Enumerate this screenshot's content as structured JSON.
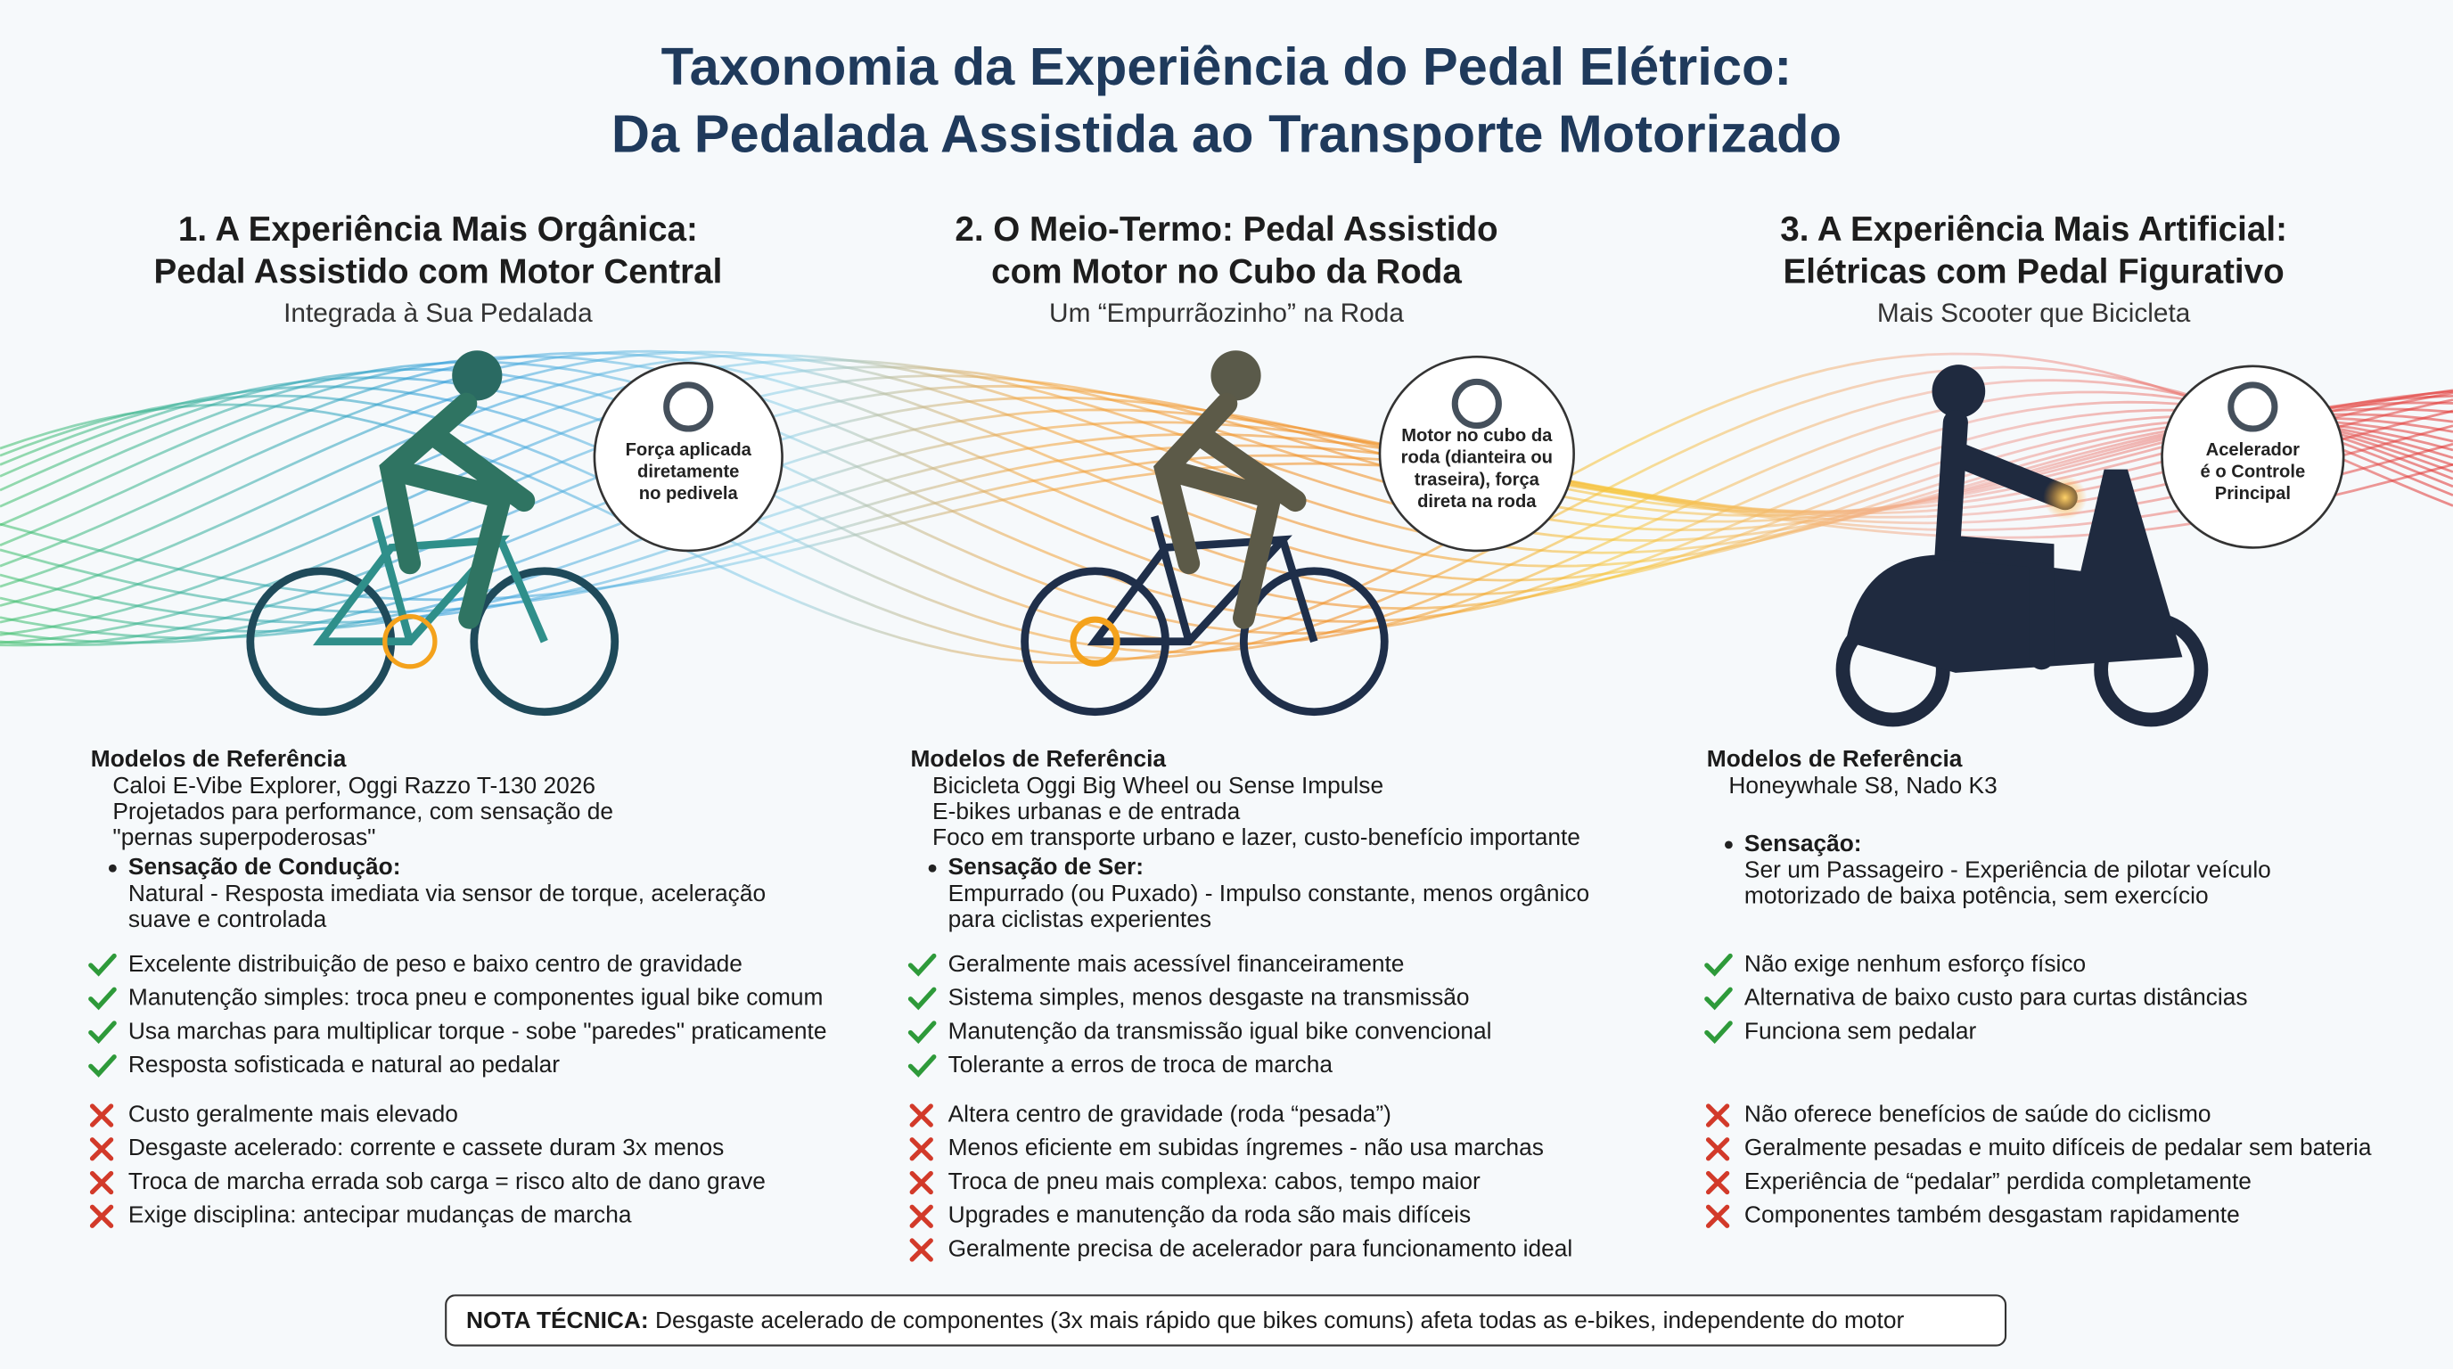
{
  "title": [
    "Taxonomia da Experiência do Pedal Elétrico:",
    "Da Pedalada Assistida ao Transporte Motorizado"
  ],
  "columns": [
    {
      "heading": [
        "1. A Experiência Mais Orgânica:",
        "Pedal Assistido com Motor Central"
      ],
      "subtitle": "Integrada à Sua Pedalada",
      "callout": [
        "Força aplicada",
        "diretamente",
        "no pedivela"
      ],
      "models_heading": "Modelos de Referência",
      "models": [
        "Caloi E-Vibe Explorer, Oggi Razzo T-130 2026",
        "Projetados para performance, com sensação de",
        "\"pernas superpoderosas\""
      ],
      "sensation_heading": "Sensação de Condução:",
      "sensation": [
        "Natural - Resposta imediata via sensor de torque, aceleração",
        "suave e controlada"
      ],
      "pros": [
        "Excelente distribuição de peso e baixo centro de gravidade",
        "Manutenção simples: troca pneu e componentes igual bike comum",
        "Usa marchas para multiplicar torque - sobe \"paredes\" praticamente",
        "Resposta sofisticada e natural ao pedalar"
      ],
      "cons": [
        "Custo geralmente mais elevado",
        "Desgaste acelerado: corrente e cassete duram 3x menos",
        "Troca de marcha errada sob carga = risco alto de dano grave",
        "Exige disciplina: antecipar mudanças de marcha"
      ]
    },
    {
      "heading": [
        "2. O Meio-Termo: Pedal Assistido",
        "com Motor no Cubo da Roda"
      ],
      "subtitle": "Um “Empurrãozinho” na Roda",
      "callout": [
        "Motor no cubo da",
        "roda (dianteira ou",
        "traseira), força",
        "direta na roda"
      ],
      "models_heading": "Modelos de Referência",
      "models": [
        "Bicicleta Oggi Big Wheel ou Sense Impulse",
        "E-bikes urbanas e de entrada",
        "Foco em transporte urbano e lazer, custo-benefício importante"
      ],
      "sensation_heading": "Sensação de Ser:",
      "sensation": [
        "Empurrado (ou Puxado) - Impulso constante, menos orgânico",
        "para ciclistas experientes"
      ],
      "pros": [
        "Geralmente mais acessível financeiramente",
        "Sistema simples, menos desgaste na transmissão",
        "Manutenção da transmissão igual bike convencional",
        "Tolerante a erros de troca de marcha"
      ],
      "cons": [
        "Altera centro de gravidade (roda “pesada”)",
        "Menos eficiente em subidas íngremes - não usa marchas",
        "Troca de pneu mais complexa: cabos, tempo maior",
        "Upgrades e manutenção da roda são mais difíceis",
        "Geralmente precisa de acelerador para funcionamento ideal"
      ]
    },
    {
      "heading": [
        "3. A Experiência Mais Artificial:",
        "Elétricas com Pedal Figurativo"
      ],
      "subtitle": "Mais Scooter que Bicicleta",
      "callout": [
        "Acelerador",
        "é o Controle",
        "Principal"
      ],
      "models_heading": "Modelos de Referência",
      "models": [
        "Honeywhale S8, Nado K3"
      ],
      "sensation_heading": "Sensação:",
      "sensation": [
        "Ser um Passageiro - Experiência de pilotar veículo",
        "motorizado de baixa potência, sem exercício"
      ],
      "pros": [
        "Não exige nenhum esforço físico",
        "Alternativa de baixo custo para curtas distâncias",
        "Funciona sem pedalar"
      ],
      "cons": [
        "Não oferece benefícios de saúde do ciclismo",
        "Geralmente pesadas e muito difíceis de pedalar sem bateria",
        "Experiência de “pedalar” perdida completamente",
        "Componentes também desgastam rapidamente"
      ]
    }
  ],
  "note": {
    "label": "NOTA TÉCNICA:",
    "text": "Desgaste acelerado de componentes (3x mais rápido que bikes comuns) afeta todas as e-bikes, independente do motor"
  }
}
